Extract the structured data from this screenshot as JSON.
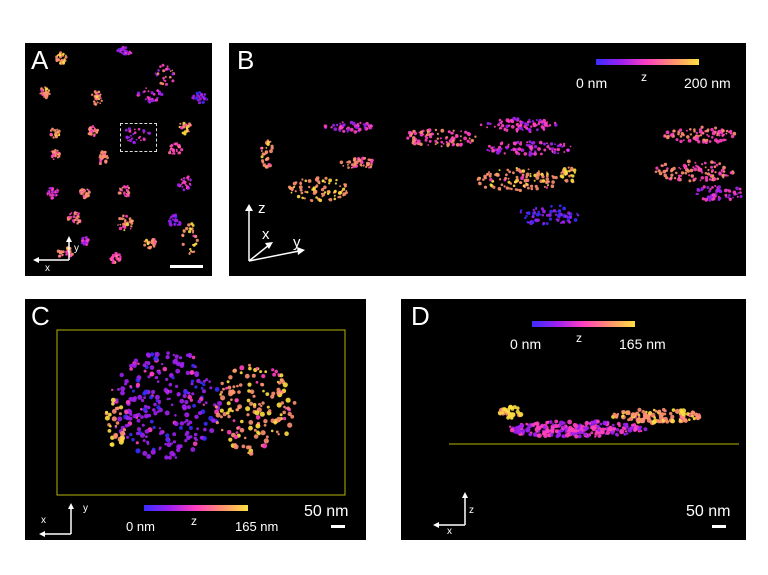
{
  "panels": {
    "a": {
      "label": "A",
      "axis_x": "x",
      "axis_y": "y"
    },
    "b": {
      "label": "B",
      "axis_z": "z",
      "axis_x": "x",
      "axis_y": "y",
      "colorbar": {
        "min_label": "0 nm",
        "mid_label": "z",
        "max_label": "200 nm"
      }
    },
    "c": {
      "label": "C",
      "axis_x": "x",
      "axis_y": "y",
      "colorbar": {
        "min_label": "0 nm",
        "mid_label": "z",
        "max_label": "165 nm"
      },
      "scalebar_label": "50 nm"
    },
    "d": {
      "label": "D",
      "axis_z": "z",
      "axis_x": "x",
      "colorbar": {
        "min_label": "0 nm",
        "mid_label": "z",
        "max_label": "165 nm"
      },
      "scalebar_label": "50 nm"
    }
  },
  "colors": {
    "colormap": [
      "#3a2cff",
      "#a020f0",
      "#ff40c0",
      "#ff9070",
      "#ffe040"
    ],
    "frame_line": "#b9b400"
  }
}
